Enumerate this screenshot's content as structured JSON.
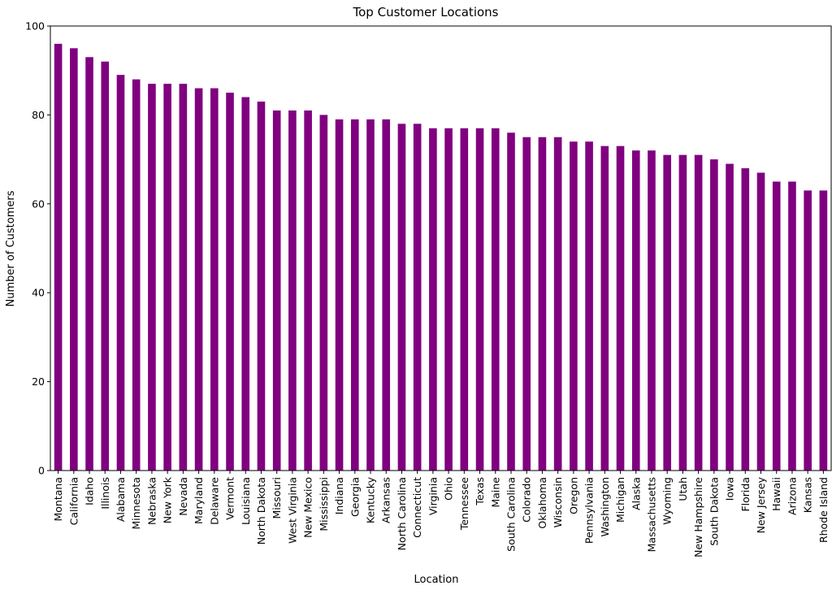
{
  "chart_data": {
    "type": "bar",
    "title": "Top Customer Locations",
    "xlabel": "Location",
    "ylabel": "Number of Customers",
    "ylim": [
      0,
      100
    ],
    "yticks": [
      0,
      20,
      40,
      60,
      80,
      100
    ],
    "bar_color": "#800080",
    "grid": false,
    "categories": [
      "Montana",
      "California",
      "Idaho",
      "Illinois",
      "Alabama",
      "Minnesota",
      "Nebraska",
      "New York",
      "Nevada",
      "Maryland",
      "Delaware",
      "Vermont",
      "Louisiana",
      "North Dakota",
      "Missouri",
      "West Virginia",
      "New Mexico",
      "Mississippi",
      "Indiana",
      "Georgia",
      "Kentucky",
      "Arkansas",
      "North Carolina",
      "Connecticut",
      "Virginia",
      "Ohio",
      "Tennessee",
      "Texas",
      "Maine",
      "South Carolina",
      "Colorado",
      "Oklahoma",
      "Wisconsin",
      "Oregon",
      "Pennsylvania",
      "Washington",
      "Michigan",
      "Alaska",
      "Massachusetts",
      "Wyoming",
      "Utah",
      "New Hampshire",
      "South Dakota",
      "Iowa",
      "Florida",
      "New Jersey",
      "Hawaii",
      "Arizona",
      "Kansas",
      "Rhode Island"
    ],
    "values": [
      96,
      95,
      93,
      92,
      89,
      88,
      87,
      87,
      87,
      86,
      86,
      85,
      84,
      83,
      81,
      81,
      81,
      80,
      79,
      79,
      79,
      79,
      78,
      78,
      77,
      77,
      77,
      77,
      77,
      76,
      75,
      75,
      75,
      74,
      74,
      73,
      73,
      72,
      72,
      71,
      71,
      71,
      70,
      69,
      68,
      67,
      65,
      65,
      63,
      63
    ]
  }
}
